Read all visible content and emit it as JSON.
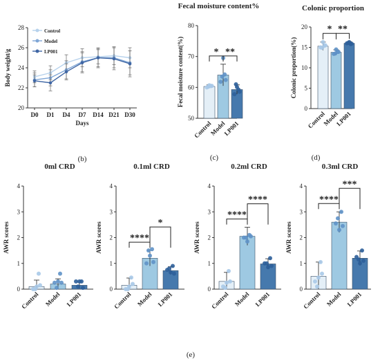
{
  "colors": {
    "control": "#e4eff7",
    "model": "#9ec9e2",
    "lp001": "#4679ad",
    "control_dot": "#a8c9e8",
    "model_dot": "#5f92c8",
    "lp001_dot": "#2d5f9a",
    "line_control": "#b7d2ec",
    "line_model": "#7fa6d6",
    "line_lp001": "#3f66a4"
  },
  "panels": {
    "b": "(b)",
    "c": "(c)",
    "d": "(d)",
    "e": "(e)"
  },
  "chart_data": [
    {
      "id": "weight",
      "type": "line",
      "title": "",
      "xlabel": "Days",
      "ylabel": "Body weight/g",
      "categories": [
        "D0",
        "D1",
        "D4",
        "D7",
        "D14",
        "D21",
        "D30"
      ],
      "ylim": [
        20,
        28
      ],
      "yticks": [
        20,
        22,
        24,
        26,
        28
      ],
      "legend_position": "top-left",
      "series": [
        {
          "name": "Control",
          "values": [
            23.1,
            23.5,
            24.5,
            25.0,
            25.1,
            25.2,
            25.0
          ],
          "err": [
            0.6,
            0.7,
            0.8,
            0.9,
            0.7,
            0.9,
            1.0
          ]
        },
        {
          "name": "Model",
          "values": [
            22.8,
            23.0,
            23.8,
            24.6,
            25.0,
            25.0,
            24.5
          ],
          "err": [
            0.7,
            0.8,
            0.9,
            1.0,
            1.0,
            1.0,
            1.2
          ]
        },
        {
          "name": "LP001",
          "values": [
            22.7,
            22.5,
            23.6,
            24.5,
            25.0,
            24.9,
            24.4
          ],
          "err": [
            0.6,
            0.8,
            0.8,
            1.0,
            0.9,
            1.1,
            1.3
          ]
        }
      ]
    },
    {
      "id": "moisture",
      "type": "bar",
      "title": "Fecal moisture content%",
      "ylabel": "Fecal moisture content(%)",
      "categories": [
        "Control",
        "Model",
        "LP001"
      ],
      "values": [
        60.3,
        64.0,
        59.3
      ],
      "err": [
        0.5,
        3.5,
        1.5
      ],
      "ylim": [
        50,
        80
      ],
      "yticks": [
        50,
        60,
        70,
        80
      ],
      "points": [
        [
          60.0,
          60.4,
          60.7,
          60.2,
          60.5
        ],
        [
          61.8,
          64.2,
          69.5,
          63.5,
          62.4
        ],
        [
          57.8,
          59.3,
          60.1,
          61.0,
          58.6
        ]
      ],
      "significance": [
        {
          "from": 0,
          "to": 1,
          "label": "*"
        },
        {
          "from": 1,
          "to": 2,
          "label": "**"
        }
      ]
    },
    {
      "id": "colonic",
      "type": "bar",
      "title": "Colonic proportion",
      "ylabel": "Colonic proportion(%)",
      "categories": [
        "Control",
        "Model",
        "LP001"
      ],
      "values": [
        15.3,
        13.8,
        16.0
      ],
      "err": [
        1.0,
        0.6,
        0.4
      ],
      "ylim": [
        0,
        20
      ],
      "yticks": [
        0,
        5,
        10,
        15,
        20
      ],
      "points": [
        [
          15.0,
          15.4,
          16.3,
          14.9,
          15.5
        ],
        [
          13.4,
          13.9,
          14.5,
          13.5,
          13.9
        ],
        [
          16.0,
          15.8,
          16.3,
          16.1,
          15.9
        ]
      ],
      "significance": [
        {
          "from": 0,
          "to": 1,
          "label": "*"
        },
        {
          "from": 1,
          "to": 2,
          "label": "**"
        }
      ]
    },
    {
      "id": "awr0",
      "type": "bar",
      "title": "0ml CRD",
      "ylabel": "AWR scores",
      "categories": [
        "Control",
        "Model",
        "LP001"
      ],
      "values": [
        0.1,
        0.2,
        0.15
      ],
      "err": [
        0.25,
        0.2,
        0.12
      ],
      "ylim": [
        0,
        4
      ],
      "yticks": [
        0,
        1,
        2,
        3,
        4
      ],
      "points": [
        [
          0,
          0.6,
          0.1,
          0,
          0.15
        ],
        [
          0.25,
          0.6,
          0.3,
          0.05,
          0.25
        ],
        [
          0.3,
          0.3,
          0.3,
          0.1,
          0.05
        ]
      ],
      "significance": []
    },
    {
      "id": "awr01",
      "type": "bar",
      "title": "0.1ml CRD",
      "ylabel": "AWR scores",
      "categories": [
        "Control",
        "Model",
        "LP001"
      ],
      "values": [
        0.15,
        1.2,
        0.72
      ],
      "err": [
        0.28,
        0.3,
        0.15
      ],
      "ylim": [
        0,
        4
      ],
      "yticks": [
        0,
        1,
        2,
        3,
        4
      ],
      "points": [
        [
          0,
          0.45,
          0.1,
          0,
          0.2
        ],
        [
          1.0,
          1.55,
          1.3,
          1.5,
          1.05
        ],
        [
          0.75,
          0.9,
          0.65,
          0.8,
          0.6
        ]
      ],
      "significance": [
        {
          "from": 0,
          "to": 1,
          "label": "****"
        },
        {
          "from": 1,
          "to": 2,
          "label": "*"
        }
      ]
    },
    {
      "id": "awr02",
      "type": "bar",
      "title": "0.2ml CRD",
      "ylabel": "AWR scores",
      "categories": [
        "Control",
        "Model",
        "LP001"
      ],
      "values": [
        0.3,
        2.05,
        0.98
      ],
      "err": [
        0.35,
        0.35,
        0.2
      ],
      "ylim": [
        0,
        4
      ],
      "yticks": [
        0,
        1,
        2,
        3,
        4
      ],
      "points": [
        [
          0.1,
          0.7,
          0.25,
          0.05,
          0.3
        ],
        [
          2.0,
          2.1,
          1.85,
          2.0,
          2.05
        ],
        [
          1.0,
          1.2,
          0.85,
          1.0,
          0.9
        ]
      ],
      "significance": [
        {
          "from": 0,
          "to": 1,
          "label": "****"
        },
        {
          "from": 1,
          "to": 2,
          "label": "****"
        }
      ]
    },
    {
      "id": "awr03",
      "type": "bar",
      "title": "0.3ml CRD",
      "ylabel": "AWR scores",
      "categories": [
        "Control",
        "Model",
        "LP001"
      ],
      "values": [
        0.5,
        2.6,
        1.2
      ],
      "err": [
        0.55,
        0.4,
        0.28
      ],
      "ylim": [
        0,
        4
      ],
      "yticks": [
        0,
        1,
        2,
        3,
        4
      ],
      "points": [
        [
          0.3,
          1.05,
          0.45,
          0.1,
          0.6
        ],
        [
          2.55,
          3.0,
          2.3,
          2.75,
          2.45
        ],
        [
          1.25,
          1.5,
          1.0,
          1.15,
          1.1
        ]
      ],
      "significance": [
        {
          "from": 0,
          "to": 1,
          "label": "****"
        },
        {
          "from": 1,
          "to": 2,
          "label": "***"
        }
      ]
    }
  ]
}
